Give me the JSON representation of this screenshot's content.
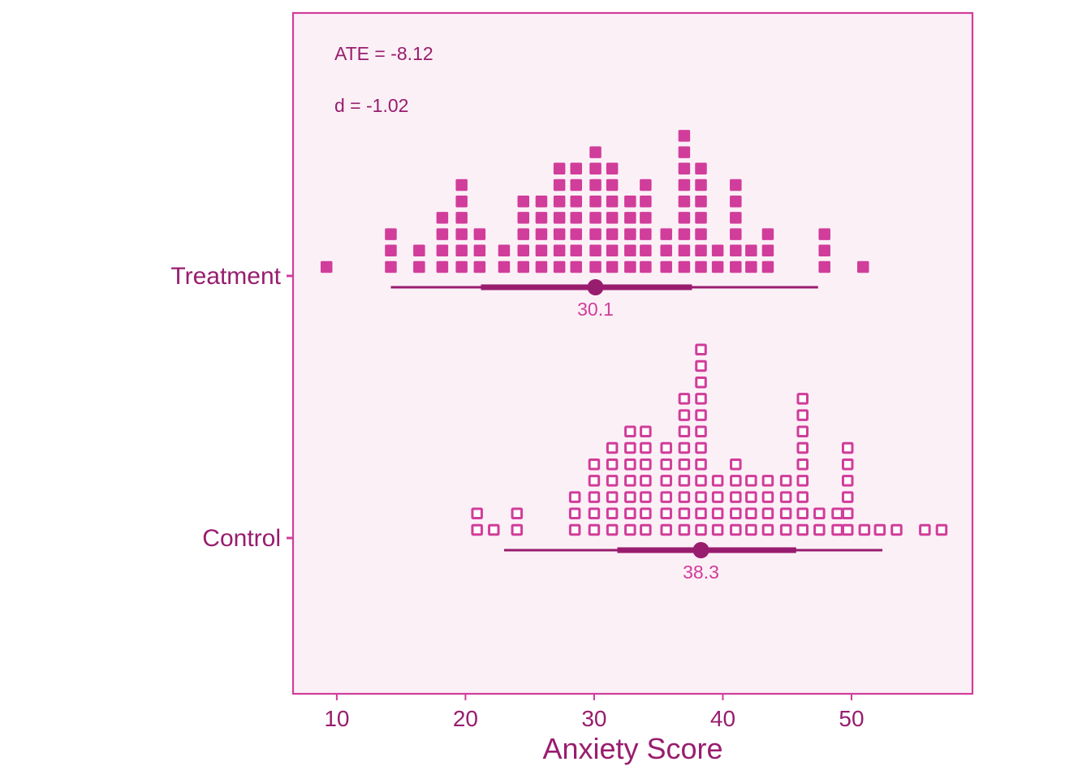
{
  "chart_data": {
    "type": "dotplot",
    "xlabel": "Anxiety Score",
    "xlim": [
      6.6,
      59.4
    ],
    "x_ticks": [
      10,
      20,
      30,
      40,
      50
    ],
    "annotations": [
      "ATE = -8.12",
      "d = -1.02"
    ],
    "grid": false,
    "groups": [
      {
        "label": "Treatment",
        "marker": "filled-square",
        "bins": [
          {
            "x": 9.2,
            "count": 1
          },
          {
            "x": 14.2,
            "count": 3
          },
          {
            "x": 16.4,
            "count": 2
          },
          {
            "x": 18.2,
            "count": 4
          },
          {
            "x": 19.7,
            "count": 6
          },
          {
            "x": 21.1,
            "count": 3
          },
          {
            "x": 23.0,
            "count": 2
          },
          {
            "x": 24.5,
            "count": 5
          },
          {
            "x": 25.9,
            "count": 5
          },
          {
            "x": 27.3,
            "count": 7
          },
          {
            "x": 28.6,
            "count": 7
          },
          {
            "x": 30.1,
            "count": 8
          },
          {
            "x": 31.4,
            "count": 7
          },
          {
            "x": 32.8,
            "count": 5
          },
          {
            "x": 34.0,
            "count": 6
          },
          {
            "x": 35.6,
            "count": 3
          },
          {
            "x": 37.0,
            "count": 9
          },
          {
            "x": 38.3,
            "count": 7
          },
          {
            "x": 39.6,
            "count": 2
          },
          {
            "x": 41.0,
            "count": 6
          },
          {
            "x": 42.2,
            "count": 2
          },
          {
            "x": 43.5,
            "count": 3
          },
          {
            "x": 47.9,
            "count": 3
          },
          {
            "x": 50.9,
            "count": 1
          }
        ],
        "mean": 30.1,
        "mean_label": "30.1",
        "interval_inner": [
          21.2,
          37.6
        ],
        "interval_outer": [
          14.2,
          47.4
        ]
      },
      {
        "label": "Control",
        "marker": "open-square",
        "bins": [
          {
            "x": 20.9,
            "count": 2
          },
          {
            "x": 22.2,
            "count": 1
          },
          {
            "x": 24.0,
            "count": 2
          },
          {
            "x": 28.5,
            "count": 3
          },
          {
            "x": 30.0,
            "count": 5
          },
          {
            "x": 31.4,
            "count": 6
          },
          {
            "x": 32.8,
            "count": 7
          },
          {
            "x": 34.0,
            "count": 7
          },
          {
            "x": 35.6,
            "count": 6
          },
          {
            "x": 37.0,
            "count": 9
          },
          {
            "x": 38.3,
            "count": 12
          },
          {
            "x": 39.6,
            "count": 4
          },
          {
            "x": 41.0,
            "count": 5
          },
          {
            "x": 42.2,
            "count": 4
          },
          {
            "x": 43.5,
            "count": 4
          },
          {
            "x": 44.9,
            "count": 4
          },
          {
            "x": 46.2,
            "count": 9
          },
          {
            "x": 47.5,
            "count": 2
          },
          {
            "x": 48.9,
            "count": 2
          },
          {
            "x": 49.7,
            "count": 6
          },
          {
            "x": 51.0,
            "count": 1
          },
          {
            "x": 52.2,
            "count": 1
          },
          {
            "x": 53.5,
            "count": 1
          },
          {
            "x": 55.7,
            "count": 1
          },
          {
            "x": 57.0,
            "count": 1
          }
        ],
        "mean": 38.3,
        "mean_label": "38.3",
        "interval_inner": [
          31.8,
          45.7
        ],
        "interval_outer": [
          23.0,
          52.4
        ]
      }
    ],
    "colors": {
      "panel_background": "#FCF0F7",
      "panel_border": "#D13D9A",
      "marker": "#D13D9A",
      "interval": "#981D6E",
      "axis_text": "#981D6E",
      "mean_label": "#D13D9A"
    }
  }
}
